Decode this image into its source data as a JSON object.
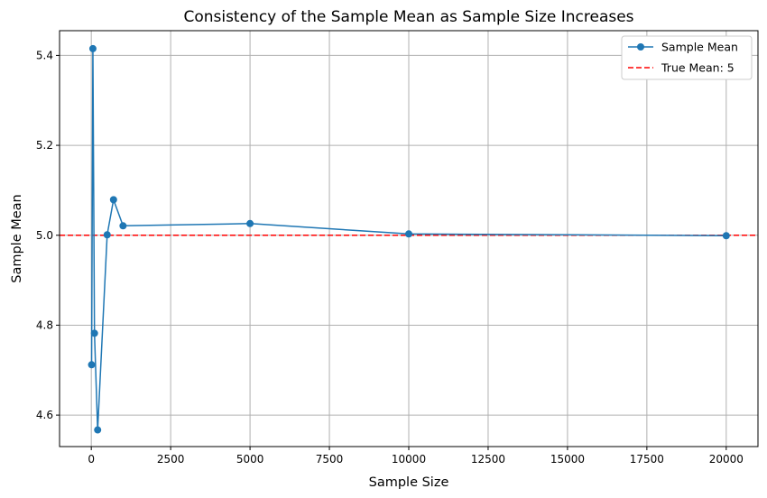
{
  "chart_data": {
    "type": "line",
    "title": "Consistency of the Sample Mean as Sample Size Increases",
    "xlabel": "Sample Size",
    "ylabel": "Sample Mean",
    "xlim": [
      -1000,
      21000
    ],
    "ylim": [
      4.53,
      5.455
    ],
    "xticks": [
      0,
      2500,
      5000,
      7500,
      10000,
      12500,
      15000,
      17500,
      20000
    ],
    "yticks": [
      4.6,
      4.8,
      5.0,
      5.2,
      5.4
    ],
    "grid": true,
    "legend_position": "top-right",
    "series": [
      {
        "name": "Sample Mean",
        "color": "#1f77b4",
        "x": [
          10,
          50,
          100,
          200,
          500,
          700,
          1000,
          5000,
          10000,
          20000
        ],
        "y": [
          4.712,
          5.415,
          4.782,
          4.567,
          5.001,
          5.079,
          5.021,
          5.026,
          5.003,
          4.999
        ]
      }
    ],
    "reference_line": {
      "name": "True Mean: 5",
      "y": 5.0,
      "color": "#ff0000",
      "style": "dashed"
    }
  }
}
